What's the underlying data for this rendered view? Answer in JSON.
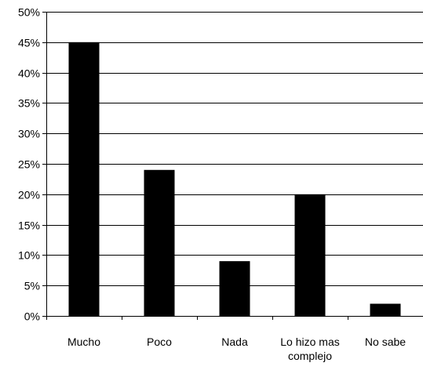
{
  "chart_data": {
    "type": "bar",
    "title": "",
    "xlabel": "",
    "ylabel": "",
    "categories": [
      [
        "Mucho"
      ],
      [
        "Poco"
      ],
      [
        "Nada"
      ],
      [
        "Lo hizo mas",
        "complejo"
      ],
      [
        "No sabe"
      ]
    ],
    "values": [
      45,
      24,
      9,
      20,
      2
    ],
    "ylim": [
      0,
      50
    ],
    "yticks": [
      0,
      5,
      10,
      15,
      20,
      25,
      30,
      35,
      40,
      45,
      50
    ],
    "ytick_suffix": "%",
    "grid": true,
    "bar_color": "#000000",
    "grid_color": "#000000"
  }
}
